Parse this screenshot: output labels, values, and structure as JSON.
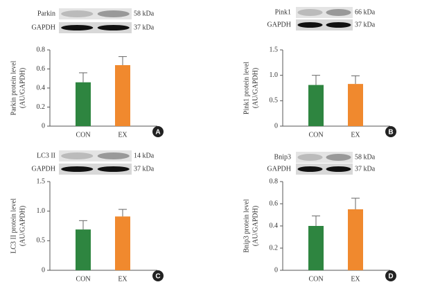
{
  "chart_data": [
    {
      "type": "bar",
      "panel": "A",
      "blots": [
        {
          "label": "Parkin",
          "size": "58 kDa"
        },
        {
          "label": "GAPDH",
          "size": "37 kDa"
        }
      ],
      "ylabel": [
        "Parkin protein level",
        "(AU/GAPDH)"
      ],
      "categories": [
        "CON",
        "EX"
      ],
      "values": [
        0.46,
        0.64
      ],
      "errors": [
        0.1,
        0.09
      ],
      "colors": [
        "#2e8540",
        "#f0892e"
      ],
      "ylim": [
        0,
        0.8
      ],
      "yticks": [
        0,
        0.2,
        0.4,
        0.6,
        0.8
      ]
    },
    {
      "type": "bar",
      "panel": "B",
      "blots": [
        {
          "label": "Pink1",
          "size": "66 kDa"
        },
        {
          "label": "GAPDH",
          "size": "37 kDa"
        }
      ],
      "ylabel": [
        "Pink1 protein level",
        "(AU/GAPDH)"
      ],
      "categories": [
        "CON",
        "EX"
      ],
      "values": [
        0.81,
        0.83
      ],
      "errors": [
        0.19,
        0.16
      ],
      "colors": [
        "#2e8540",
        "#f0892e"
      ],
      "ylim": [
        0,
        1.5
      ],
      "yticks": [
        0,
        0.5,
        {
          "value": 1,
          "label": "1.0"
        },
        1.5
      ]
    },
    {
      "type": "bar",
      "panel": "C",
      "blots": [
        {
          "label": "LC3 II",
          "size": "14 kDa"
        },
        {
          "label": "GAPDH",
          "size": "37 kDa"
        }
      ],
      "ylabel": [
        "LC3 II protein level",
        "(AU/GAPDH)"
      ],
      "categories": [
        "CON",
        "EX"
      ],
      "values": [
        0.69,
        0.91
      ],
      "errors": [
        0.15,
        0.12
      ],
      "colors": [
        "#2e8540",
        "#f0892e"
      ],
      "ylim": [
        0,
        1.5
      ],
      "yticks": [
        0,
        0.5,
        {
          "value": 1,
          "label": "1.0"
        },
        1.5
      ]
    },
    {
      "type": "bar",
      "panel": "D",
      "blots": [
        {
          "label": "Bnip3",
          "size": "58 kDa"
        },
        {
          "label": "GAPDH",
          "size": "37 kDa"
        }
      ],
      "ylabel": [
        "Bnip3 protein level",
        "(AU/GAPDH)"
      ],
      "categories": [
        "CON",
        "EX"
      ],
      "values": [
        0.4,
        0.55
      ],
      "errors": [
        0.09,
        0.1
      ],
      "colors": [
        "#2e8540",
        "#f0892e"
      ],
      "ylim": [
        0,
        0.8
      ],
      "yticks": [
        0,
        0.2,
        0.4,
        0.6,
        0.8
      ]
    }
  ]
}
